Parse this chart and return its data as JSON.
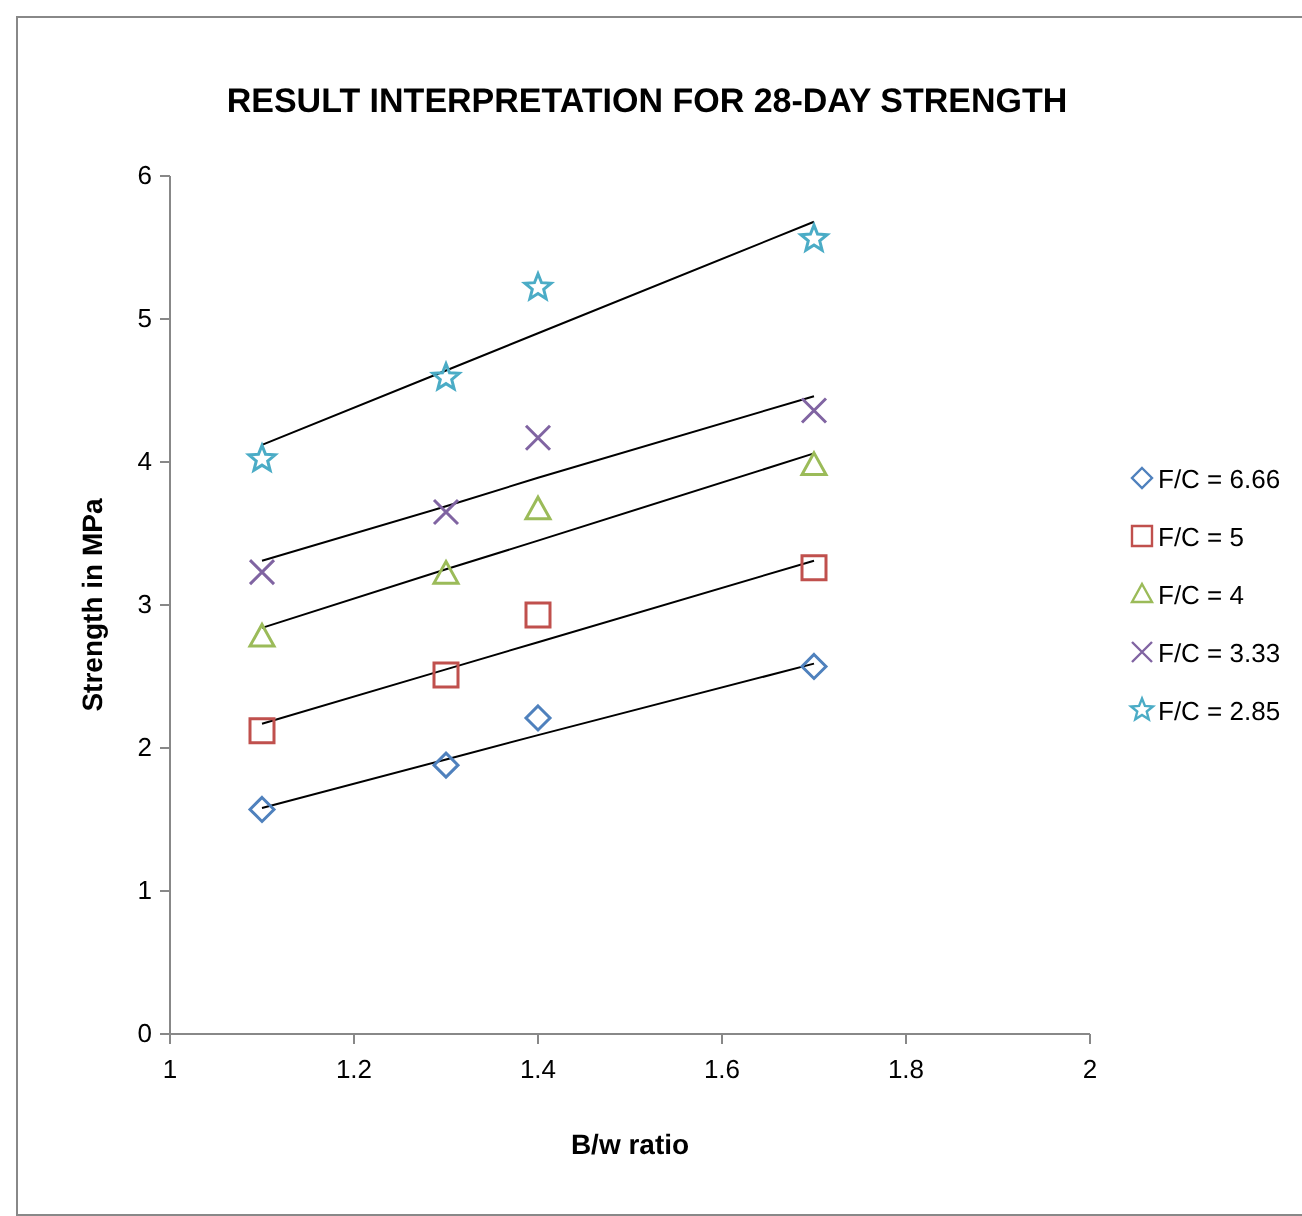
{
  "chart_data": {
    "type": "scatter",
    "title": "RESULT INTERPRETATION FOR 28-DAY STRENGTH",
    "xlabel": "B/w ratio",
    "ylabel": "Strength in MPa",
    "x": [
      1.1,
      1.3,
      1.4,
      1.7
    ],
    "xlim": [
      1,
      2
    ],
    "xticks": [
      1,
      1.2,
      1.4,
      1.6,
      1.8,
      2
    ],
    "ylim": [
      0,
      6
    ],
    "yticks": [
      0,
      1,
      2,
      3,
      4,
      5,
      6
    ],
    "grid": false,
    "legend": "right",
    "series": [
      {
        "name": "F/C = 6.66",
        "color": "#4f81bd",
        "marker": "diamond",
        "values": [
          1.57,
          1.88,
          2.21,
          2.57
        ]
      },
      {
        "name": "F/C = 5",
        "color": "#c0504d",
        "marker": "square",
        "values": [
          2.12,
          2.51,
          2.93,
          3.26
        ]
      },
      {
        "name": "F/C = 4",
        "color": "#9bbb59",
        "marker": "triangle",
        "values": [
          2.78,
          3.22,
          3.67,
          3.98
        ]
      },
      {
        "name": "F/C = 3.33",
        "color": "#8064a2",
        "marker": "cross",
        "values": [
          3.23,
          3.65,
          4.17,
          4.36
        ]
      },
      {
        "name": "F/C = 2.85",
        "color": "#4bacc6",
        "marker": "star",
        "values": [
          4.02,
          4.59,
          5.22,
          5.56
        ]
      },
      {
        "type": "line",
        "color": "#000000",
        "marker": "none",
        "values": [
          1.58,
          1.92,
          2.09,
          2.59
        ]
      },
      {
        "type": "line",
        "color": "#000000",
        "marker": "none",
        "values": [
          2.17,
          2.55,
          2.74,
          3.31
        ]
      },
      {
        "type": "line",
        "color": "#000000",
        "marker": "none",
        "values": [
          2.84,
          3.25,
          3.45,
          4.06
        ]
      },
      {
        "type": "line",
        "color": "#000000",
        "marker": "none",
        "values": [
          3.31,
          3.69,
          3.89,
          4.46
        ]
      },
      {
        "type": "line",
        "color": "#000000",
        "marker": "none",
        "values": [
          4.12,
          4.64,
          4.9,
          5.68
        ]
      }
    ]
  }
}
